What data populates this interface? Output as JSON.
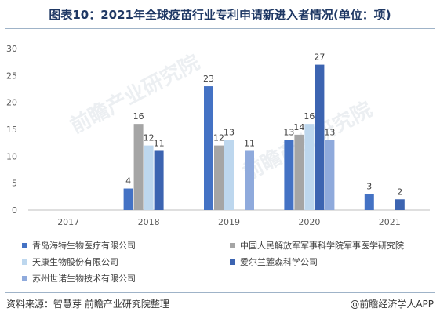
{
  "title": "图表10：2021年全球疫苗行业专利申请新进入者情况(单位：项)",
  "source": "资料来源：智慧芽 前瞻产业研究院整理",
  "brand": "@前瞻经济学人APP",
  "watermark": "前瞻产业研究院",
  "chart_data": {
    "type": "bar",
    "categories": [
      "2017",
      "2018",
      "2019",
      "2020",
      "2021"
    ],
    "ylim": [
      0,
      30
    ],
    "yticks": [
      0,
      5,
      10,
      15,
      20,
      25,
      30
    ],
    "grid": false,
    "legend_position": "bottom",
    "series": [
      {
        "name": "青岛海特生物医疗有限公司",
        "color": "#4472c4",
        "values": [
          null,
          4,
          23,
          13,
          3
        ]
      },
      {
        "name": "中国人民解放军军事科学院军事医学研究院",
        "color": "#a5a5a5",
        "values": [
          null,
          16,
          12,
          14,
          null
        ]
      },
      {
        "name": "天康生物股份有限公司",
        "color": "#bdd7ee",
        "values": [
          null,
          12,
          13,
          16,
          null
        ]
      },
      {
        "name": "爱尔兰麓森科学公司",
        "color": "#3c64b1",
        "values": [
          null,
          11,
          null,
          27,
          2
        ]
      },
      {
        "name": "苏州世诺生物技术有限公司",
        "color": "#8faadc",
        "values": [
          null,
          null,
          11,
          13,
          null
        ]
      }
    ]
  }
}
